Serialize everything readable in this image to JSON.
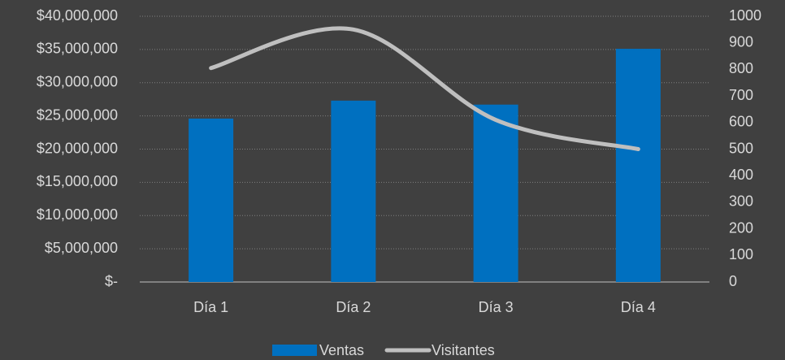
{
  "chart_data": {
    "type": "bar",
    "categories": [
      "Día 1",
      "Día 2",
      "Día 3",
      "Día 4"
    ],
    "series": [
      {
        "name": "Ventas",
        "type": "bar",
        "color": "#0070c0",
        "values": [
          24600000,
          27300000,
          26700000,
          35100000
        ]
      },
      {
        "name": "Visitantes",
        "type": "line",
        "axis": "y2",
        "color": "#bfbfbf",
        "smooth": true,
        "values": [
          805,
          950,
          610,
          500
        ]
      }
    ],
    "ylim": [
      0,
      40000000
    ],
    "yticks": [
      {
        "value": 0,
        "label": "$-"
      },
      {
        "value": 5000000,
        "label": "$5,000,000"
      },
      {
        "value": 10000000,
        "label": "$10,000,000"
      },
      {
        "value": 15000000,
        "label": "$15,000,000"
      },
      {
        "value": 20000000,
        "label": "$20,000,000"
      },
      {
        "value": 25000000,
        "label": "$25,000,000"
      },
      {
        "value": 30000000,
        "label": "$30,000,000"
      },
      {
        "value": 35000000,
        "label": "$35,000,000"
      },
      {
        "value": 40000000,
        "label": "$40,000,000"
      }
    ],
    "y2lim": [
      0,
      1000
    ],
    "y2ticks": [
      0,
      100,
      200,
      300,
      400,
      500,
      600,
      700,
      800,
      900,
      1000
    ],
    "grid": true,
    "legend": "bottom"
  }
}
